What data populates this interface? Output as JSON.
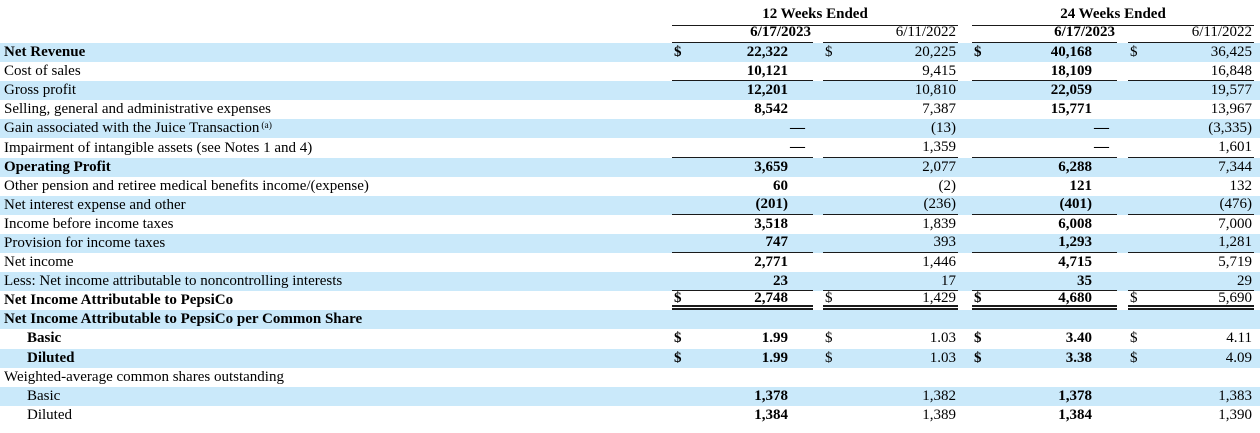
{
  "table": {
    "currency_symbol": "$",
    "colors": {
      "row_highlight": "#cae9fa",
      "rule": "#1a1a1a",
      "text": "#000000"
    },
    "period_groups": [
      {
        "label": "12 Weeks Ended"
      },
      {
        "label": "24 Weeks Ended"
      }
    ],
    "columns": [
      {
        "label": "6/17/2023",
        "year": "2023"
      },
      {
        "label": "6/11/2022",
        "year": "2022"
      },
      {
        "label": "6/17/2023",
        "year": "2023"
      },
      {
        "label": "6/11/2022",
        "year": "2022"
      }
    ],
    "rows": [
      {
        "label": "Net Revenue",
        "sup": "",
        "bold": true,
        "indent": false,
        "shaded": true,
        "dollar": true,
        "rule": "none",
        "values": [
          "22,322",
          "20,225",
          "40,168",
          "36,425"
        ]
      },
      {
        "label": "Cost of sales",
        "sup": "",
        "bold": false,
        "indent": false,
        "shaded": false,
        "dollar": false,
        "rule": "single",
        "values": [
          "10,121",
          "9,415",
          "18,109",
          "16,848"
        ]
      },
      {
        "label": "Gross profit",
        "sup": "",
        "bold": false,
        "indent": false,
        "shaded": true,
        "dollar": false,
        "rule": "none",
        "values": [
          "12,201",
          "10,810",
          "22,059",
          "19,577"
        ]
      },
      {
        "label": "Selling, general and administrative expenses",
        "sup": "",
        "bold": false,
        "indent": false,
        "shaded": false,
        "dollar": false,
        "rule": "none",
        "values": [
          "8,542",
          "7,387",
          "15,771",
          "13,967"
        ]
      },
      {
        "label": "Gain associated with the Juice Transaction",
        "sup": "(a)",
        "bold": false,
        "indent": false,
        "shaded": true,
        "dollar": false,
        "rule": "none",
        "values": [
          "—",
          "(13)",
          "—",
          "(3,335)"
        ]
      },
      {
        "label": "Impairment of intangible assets (see Notes 1 and 4)",
        "sup": "",
        "bold": false,
        "indent": false,
        "shaded": false,
        "dollar": false,
        "rule": "single",
        "values": [
          "—",
          "1,359",
          "—",
          "1,601"
        ]
      },
      {
        "label": "Operating Profit",
        "sup": "",
        "bold": true,
        "indent": false,
        "shaded": true,
        "dollar": false,
        "rule": "none",
        "values": [
          "3,659",
          "2,077",
          "6,288",
          "7,344"
        ]
      },
      {
        "label": "Other pension and retiree medical benefits income/(expense)",
        "sup": "",
        "bold": false,
        "indent": false,
        "shaded": false,
        "dollar": false,
        "rule": "none",
        "values": [
          "60",
          "(2)",
          "121",
          "132"
        ]
      },
      {
        "label": "Net interest expense and other",
        "sup": "",
        "bold": false,
        "indent": false,
        "shaded": true,
        "dollar": false,
        "rule": "single",
        "values": [
          "(201)",
          "(236)",
          "(401)",
          "(476)"
        ]
      },
      {
        "label": "Income before income taxes",
        "sup": "",
        "bold": false,
        "indent": false,
        "shaded": false,
        "dollar": false,
        "rule": "none",
        "values": [
          "3,518",
          "1,839",
          "6,008",
          "7,000"
        ]
      },
      {
        "label": "Provision for income taxes",
        "sup": "",
        "bold": false,
        "indent": false,
        "shaded": true,
        "dollar": false,
        "rule": "single",
        "values": [
          "747",
          "393",
          "1,293",
          "1,281"
        ]
      },
      {
        "label": "Net income",
        "sup": "",
        "bold": false,
        "indent": false,
        "shaded": false,
        "dollar": false,
        "rule": "none",
        "values": [
          "2,771",
          "1,446",
          "4,715",
          "5,719"
        ]
      },
      {
        "label": "Less: Net income attributable to noncontrolling interests",
        "sup": "",
        "bold": false,
        "indent": false,
        "shaded": true,
        "dollar": false,
        "rule": "single",
        "values": [
          "23",
          "17",
          "35",
          "29"
        ]
      },
      {
        "label": "Net Income Attributable to PepsiCo",
        "sup": "",
        "bold": true,
        "indent": false,
        "shaded": false,
        "dollar": true,
        "rule": "double",
        "values": [
          "2,748",
          "1,429",
          "4,680",
          "5,690"
        ]
      },
      {
        "label": "Net Income Attributable to PepsiCo per Common Share",
        "sup": "",
        "bold": true,
        "indent": false,
        "shaded": true,
        "dollar": false,
        "rule": "none",
        "values": [
          "",
          "",
          "",
          ""
        ]
      },
      {
        "label": "Basic",
        "sup": "",
        "bold": true,
        "indent": true,
        "shaded": false,
        "dollar": true,
        "rule": "none",
        "values": [
          "1.99",
          "1.03",
          "3.40",
          "4.11"
        ]
      },
      {
        "label": "Diluted",
        "sup": "",
        "bold": true,
        "indent": true,
        "shaded": true,
        "dollar": true,
        "rule": "none",
        "values": [
          "1.99",
          "1.03",
          "3.38",
          "4.09"
        ]
      },
      {
        "label": "Weighted-average common shares outstanding",
        "sup": "",
        "bold": false,
        "indent": false,
        "shaded": false,
        "dollar": false,
        "rule": "none",
        "values": [
          "",
          "",
          "",
          ""
        ]
      },
      {
        "label": "Basic",
        "sup": "",
        "bold": false,
        "indent": true,
        "shaded": true,
        "dollar": false,
        "rule": "none",
        "values": [
          "1,378",
          "1,382",
          "1,378",
          "1,383"
        ]
      },
      {
        "label": "Diluted",
        "sup": "",
        "bold": false,
        "indent": true,
        "shaded": false,
        "dollar": false,
        "rule": "none",
        "values": [
          "1,384",
          "1,389",
          "1,384",
          "1,390"
        ]
      }
    ]
  }
}
